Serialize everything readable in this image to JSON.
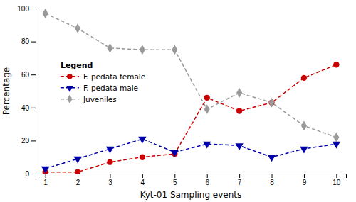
{
  "chart_data": {
    "type": "line",
    "x": [
      1,
      2,
      3,
      4,
      5,
      6,
      7,
      8,
      9,
      10
    ],
    "series": [
      {
        "name": "F. pedata female",
        "color": "#cc0000",
        "marker": "circle",
        "line_style": "dashed",
        "values": [
          1,
          1,
          7,
          10,
          12,
          46,
          38,
          43,
          58,
          66
        ]
      },
      {
        "name": "F. pedata male",
        "color": "#0000aa",
        "marker": "triangle-down",
        "line_style": "dashed",
        "values": [
          3,
          9,
          15,
          21,
          13,
          18,
          17,
          10,
          15,
          18
        ]
      },
      {
        "name": "Juveniles",
        "color": "#999999",
        "marker": "diamond",
        "line_style": "dashed",
        "values": [
          97,
          88,
          76,
          75,
          75,
          39,
          49,
          43,
          29,
          22
        ]
      }
    ],
    "xlabel": "Kyt-01 Sampling events",
    "ylabel": "Percentage",
    "xlim": [
      0.7,
      10.3
    ],
    "ylim": [
      0,
      100
    ],
    "xticks": [
      1,
      2,
      3,
      4,
      5,
      6,
      7,
      8,
      9,
      10
    ],
    "yticks": [
      0,
      20,
      40,
      60,
      80,
      100
    ],
    "legend_title": "Legend",
    "legend": "left"
  }
}
